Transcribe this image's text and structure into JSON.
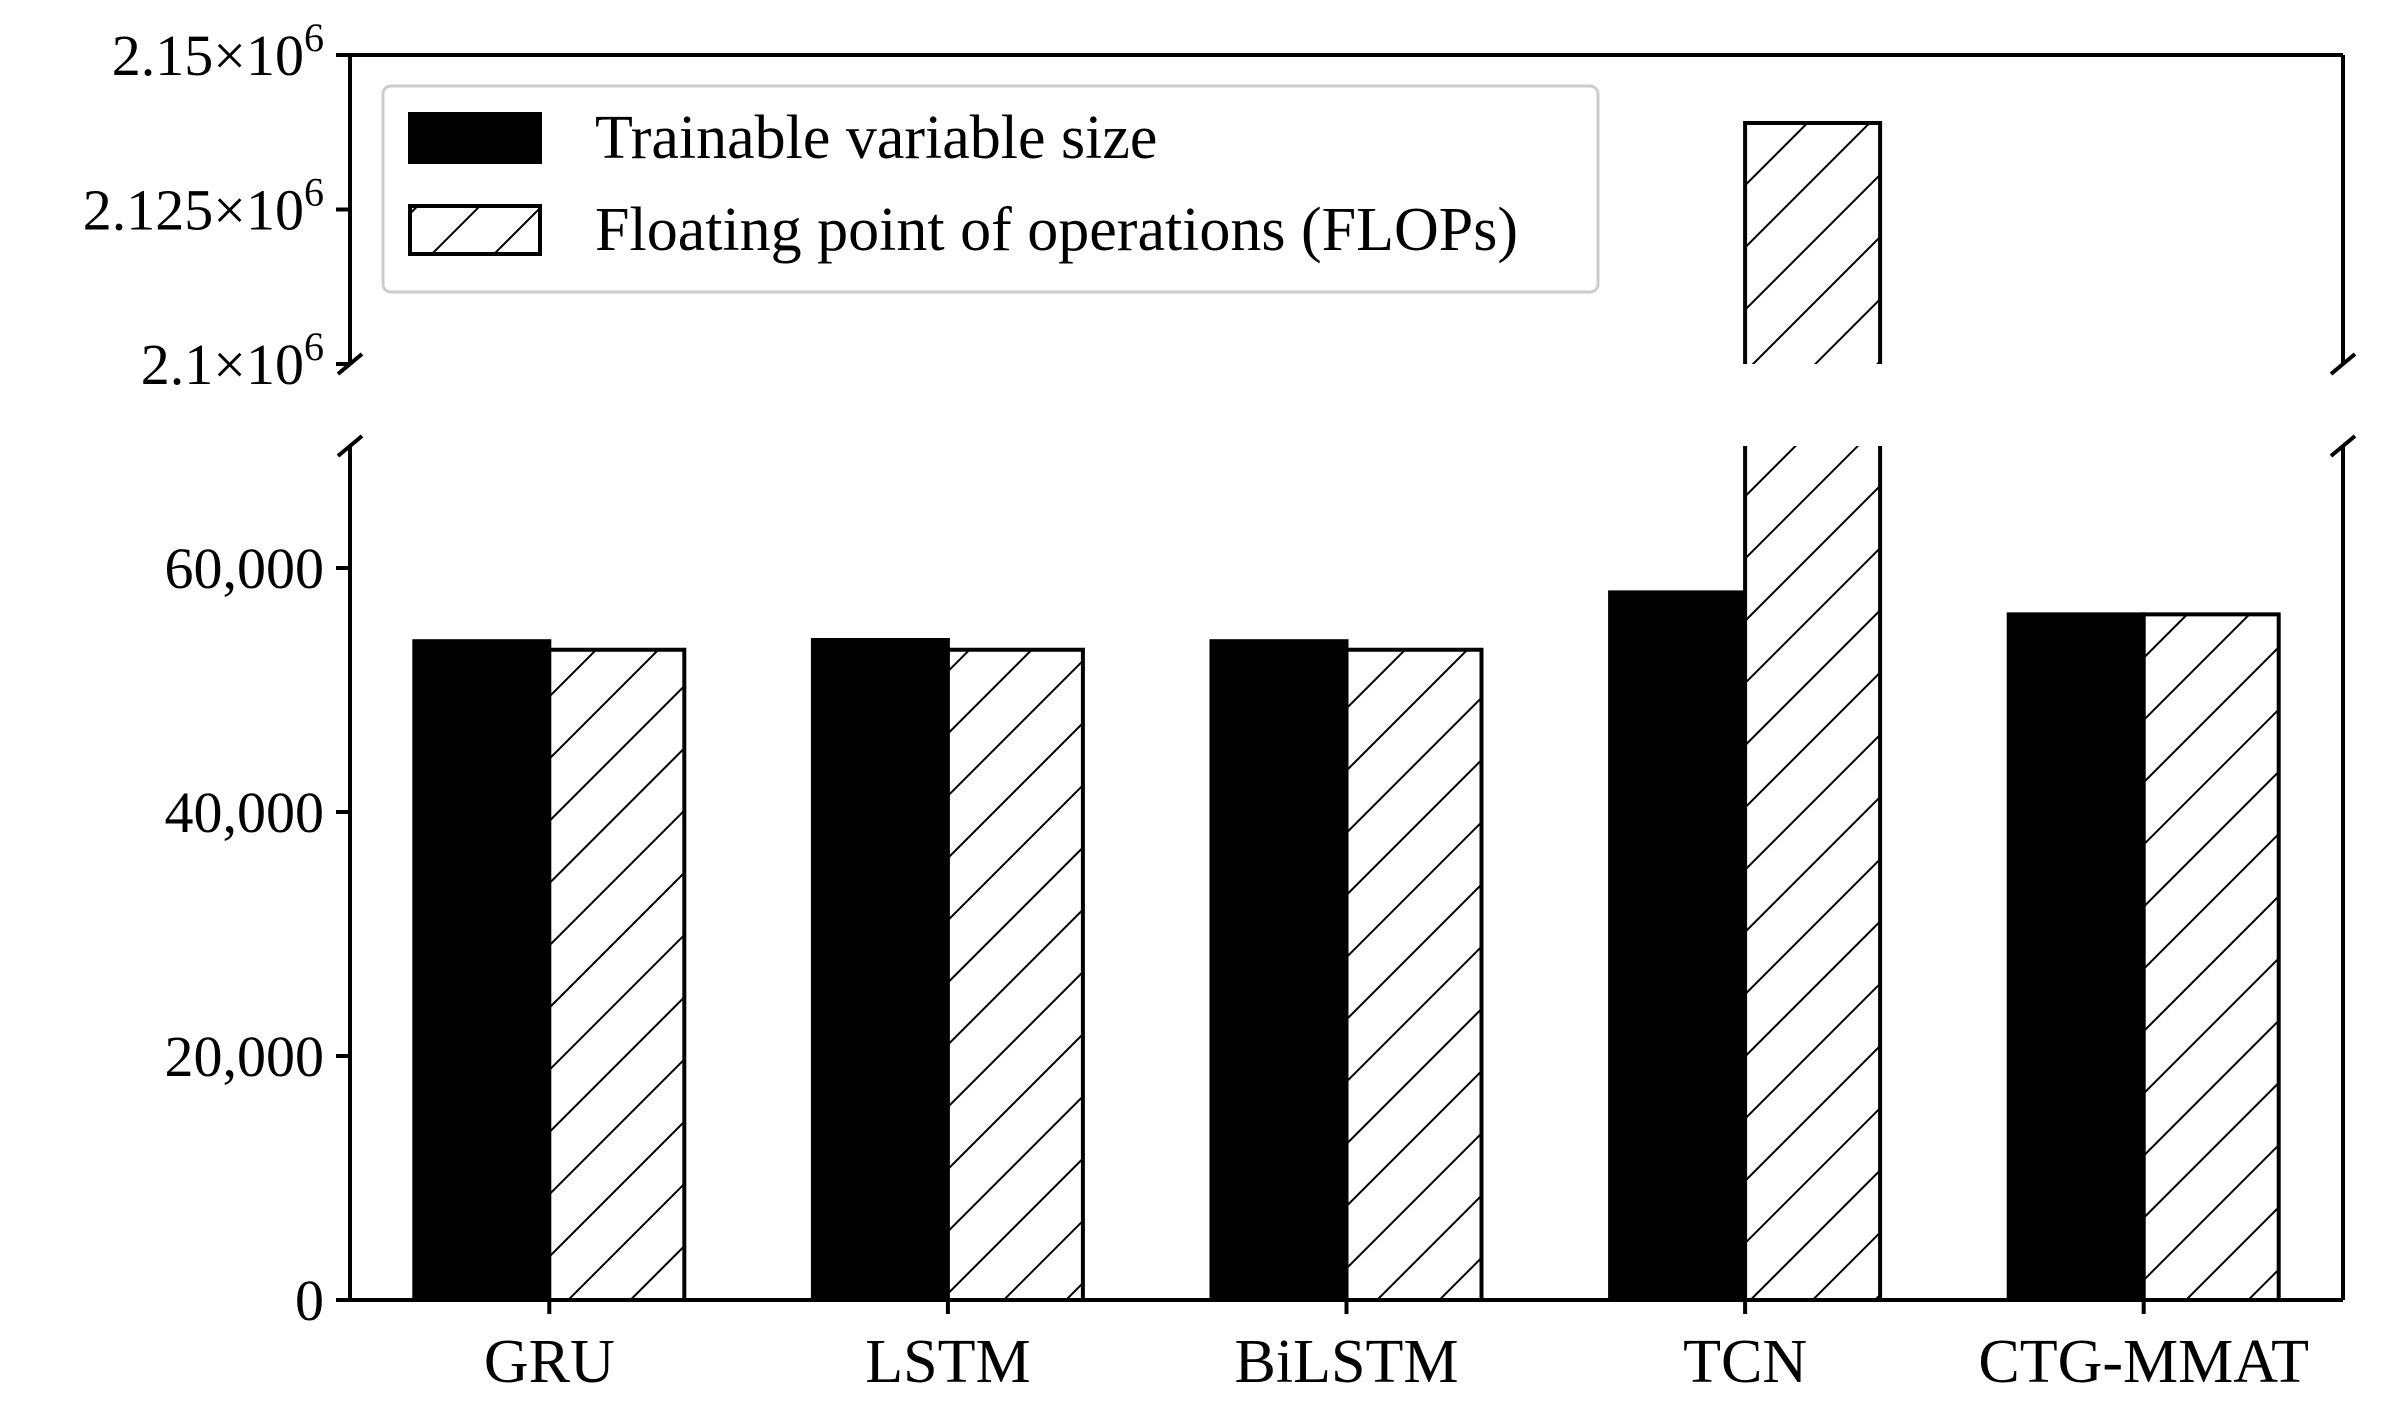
{
  "chart_data": {
    "type": "bar",
    "broken_y_axis": true,
    "categories": [
      "GRU",
      "LSTM",
      "BiLSTM",
      "TCN",
      "CTG-MMAT"
    ],
    "series": [
      {
        "name": "Trainable variable size",
        "style": "solid",
        "color": "#000000",
        "values": [
          54000,
          54100,
          54000,
          58000,
          56200
        ]
      },
      {
        "name": "Floating point of operations (FLOPs)",
        "style": "hatched",
        "color": "#ffffff",
        "values": [
          53300,
          53300,
          53300,
          2139000,
          56200
        ]
      }
    ],
    "lower_axis": {
      "ylim": [
        0,
        70000
      ],
      "ticks": [
        0,
        20000,
        40000,
        60000
      ],
      "tick_labels": [
        "0",
        "20,000",
        "40,000",
        "60,000"
      ]
    },
    "upper_axis": {
      "ylim": [
        2100000,
        2150000
      ],
      "ticks": [
        2100000,
        2125000,
        2150000
      ],
      "tick_mantissa": [
        "2.1",
        "2.125",
        "2.15"
      ],
      "tick_times": "×10",
      "tick_exponent": "6"
    },
    "title": "",
    "xlabel": "",
    "ylabel": "",
    "legend_position": "top-left"
  }
}
